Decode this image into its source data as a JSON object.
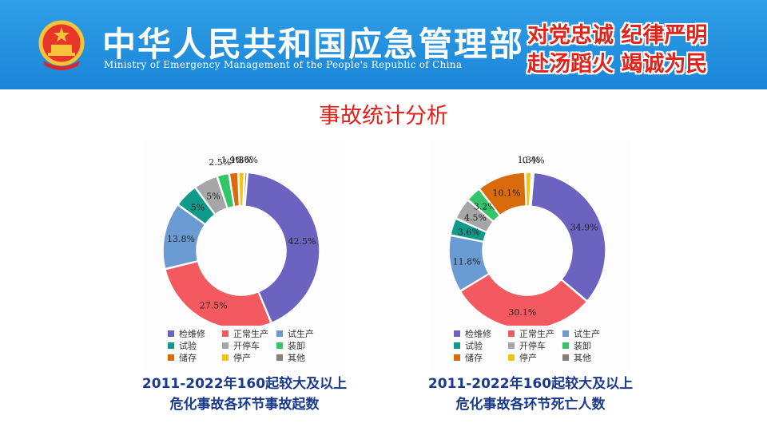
{
  "header": {
    "org_cn": "中华人民共和国应急管理部",
    "org_en": "Ministry of Emergency Management of the People's Republic of China",
    "slogan_line1": "对党忠诚 纪律严明",
    "slogan_line2": "赴汤蹈火 竭诚为民",
    "bg_color": "#1b86d8",
    "slogan_color": "#e1231b"
  },
  "page_title": "事故统计分析",
  "chart_data": [
    {
      "type": "donut",
      "categories": [
        "检维修",
        "正常生产",
        "试生产",
        "试验",
        "开停车",
        "装卸",
        "储存",
        "停产",
        "其他"
      ],
      "values": [
        42.5,
        27.5,
        13.8,
        5,
        5,
        2.5,
        1.9,
        1.3,
        0.6
      ],
      "labels": [
        "42.5%",
        "27.5%",
        "13.8%",
        "5%",
        "5%",
        "2.5%",
        "1.9%",
        "1.3%",
        "0.6%"
      ],
      "colors": [
        "#6b63bf",
        "#f35a5f",
        "#6a9bd2",
        "#109a8c",
        "#a6a6a6",
        "#34c46a",
        "#d96b0c",
        "#f2c319",
        "#8a7e72"
      ],
      "legend_position": "bottom",
      "caption_line1": "2011-2022年160起较大及以上",
      "caption_line2": "危化事故各环节事故起数"
    },
    {
      "type": "donut",
      "categories": [
        "检维修",
        "正常生产",
        "试生产",
        "试验",
        "开停车",
        "装卸",
        "储存",
        "停产",
        "其他"
      ],
      "values": [
        34.9,
        30.1,
        11.8,
        3.6,
        4.5,
        3.2,
        10.1,
        1.3,
        0.4
      ],
      "labels": [
        "34.9%",
        "30.1%",
        "11.8%",
        "3.6%",
        "4.5%",
        "3.2%",
        "10.1%",
        "1.3%",
        "0.4%"
      ],
      "colors": [
        "#6b63bf",
        "#f35a5f",
        "#6a9bd2",
        "#109a8c",
        "#a6a6a6",
        "#34c46a",
        "#d96b0c",
        "#f2c319",
        "#8a7e72"
      ],
      "legend_position": "bottom",
      "caption_line1": "2011-2022年160起较大及以上",
      "caption_line2": "危化事故各环节死亡人数"
    }
  ]
}
